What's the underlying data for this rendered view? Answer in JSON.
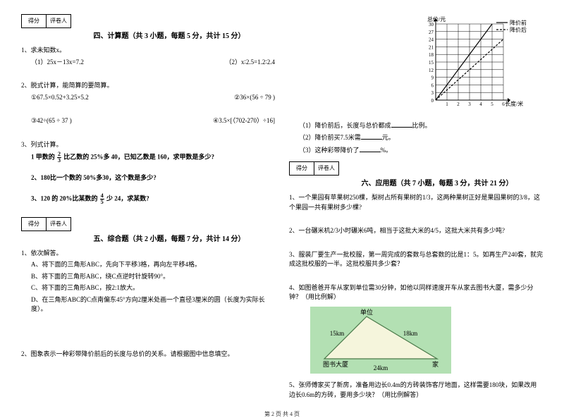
{
  "score_labels": {
    "score": "得分",
    "marker": "评卷人"
  },
  "section4": {
    "title": "四、计算题（共 3 小题，每题 5 分，共计 15 分）",
    "q1_stem": "1、求未知数x。",
    "q1a": "（1）25x－13x=7.2",
    "q1b": "（2）x∶2.5=1.2∶2.4",
    "q2_stem": "2、脱式计算，能简算的要简算。",
    "q2a": "①67.5×0.52+3.25×5.2",
    "q2b": "②36×(56 ÷ 79 )",
    "q2c": "③42÷(65 ÷ 37 )",
    "q2d": "④3.5×[（702-270）÷16]",
    "q3_stem": "3、列式计算。",
    "q3a_pre": "1 甲数的",
    "q3a_frac_n": "2",
    "q3a_frac_d": "3",
    "q3a_post": "比乙数的 25%多 40，已知乙数是 160，求甲数是多少?",
    "q3b": "2、180比一个数的 50%多30，这个数是多少?",
    "q3c_pre": "3、120 的 20%比某数的",
    "q3c_frac_n": "4",
    "q3c_frac_d": "5",
    "q3c_post": "少 24，求某数?"
  },
  "section5": {
    "title": "五、综合题（共 2 小题，每题 7 分，共计 14 分）",
    "q1_stem": "1、依次解答。",
    "q1a": "A、将下面的三角形ABC，先向下平移3格，再向左平移4格。",
    "q1b": "B、将下面的三角形ABC，绕C点逆时针旋转90°。",
    "q1c": "C、将下面的三角形ABC，按2:1放大。",
    "q1d": "D、在三角形ABC的C点南偏东45°方向2厘米处画一个直径3厘米的圆（长度为实际长度）。",
    "q2": "2、图象表示一种彩带降价前后的长度与总价的关系。请根据图中信息填空。"
  },
  "chart": {
    "y_label": "总价/元",
    "x_label": "长度/米",
    "legend1": "降价前",
    "legend2": "降价后",
    "y_ticks": [
      "0",
      "3",
      "6",
      "9",
      "12",
      "15",
      "18",
      "21",
      "24",
      "27",
      "30"
    ],
    "x_ticks": [
      "1",
      "2",
      "3",
      "4",
      "5",
      "6"
    ],
    "width": 160,
    "height": 130,
    "grid_color": "#000",
    "line1": [
      [
        0,
        0
      ],
      [
        5,
        30
      ]
    ],
    "line2": [
      [
        0,
        0
      ],
      [
        6,
        24
      ]
    ],
    "line2_dash": "3,2"
  },
  "chart_q": {
    "l1_pre": "（1）降价前后，长度与总价都成",
    "l1_post": "比例。",
    "l2_pre": "（2）降价前买7.5米需",
    "l2_post": "元。",
    "l3_pre": "（3）这种彩带降价了",
    "l3_post": "%。"
  },
  "section6": {
    "title": "六、应用题（共 7 小题，每题 3 分，共计 21 分）",
    "q1": "1、一个果园有苹果树250棵，梨树占所有果树的1/3，这两种果树正好是果园果树的3/8，这个果园一共有果树多少棵?",
    "q2": "2、一台碾米机2/3小时碾米6吨，相当于这批大米的4/5，这批大米共有多少吨?",
    "q3": "3、服装厂要生产一批校服，第一周完成的套数与总套数的比是1：5。如再生产240套，就完成这批校服的一半。这批校服共多少套？",
    "q4": "4、如图爸爸开车从家到单位需30分钟，如他以同样速度开车从家去图书大厦，需多少分钟？（用比例解）",
    "q5": "5、张师傅家买了新房，准备用边长0.4m的方砖装饰客厅地面，这样需要180块，如果改用边长0.6m的方砖，要用多少块？（用比例解答）"
  },
  "triangle": {
    "bg": "#b3e0b3",
    "fill": "#f5f5dc",
    "stroke": "#4a7a4a",
    "top": "单位",
    "left_label": "15km",
    "right_label": "18km",
    "left_v": "图书大厦",
    "right_v": "家",
    "bottom": "24km"
  },
  "footer": "第 2 页 共 4 页"
}
